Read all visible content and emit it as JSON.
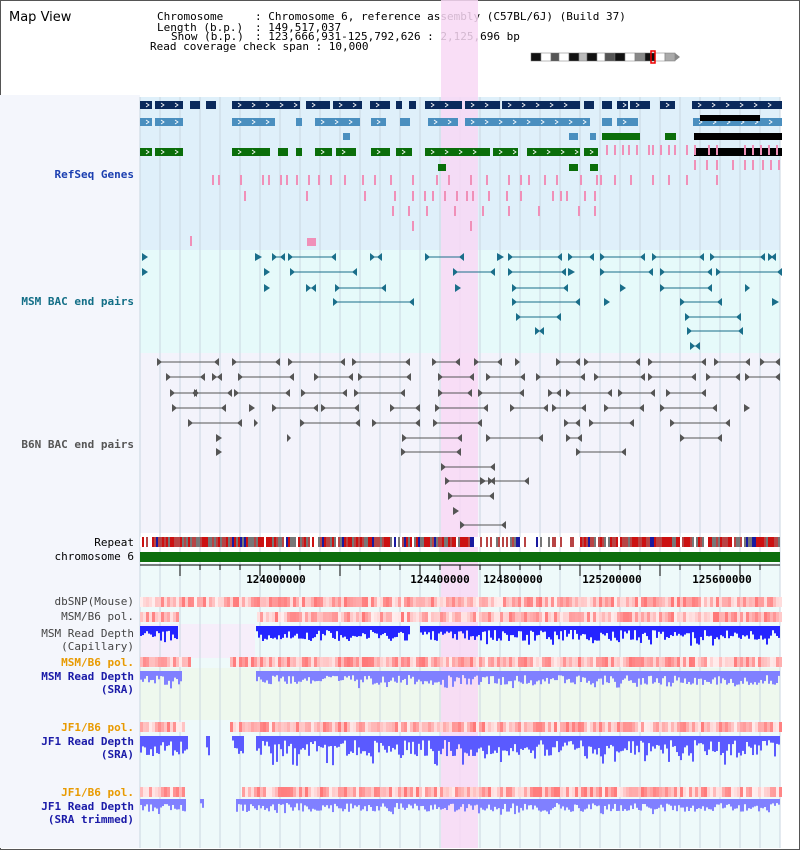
{
  "header": {
    "title": "Map View",
    "chromosome_key": "Chromosome",
    "chromosome_value": ": Chromosome 6, reference assembly (C57BL/6J) (Build 37)",
    "length_key": "Length (b.p.)",
    "length_value": ": 149,517,037",
    "show_key": "Show (b.p.)",
    "show_value": ": 123,666,931-125,792,626 : 2,125,696 bp",
    "read_coverage": "Read coverage check span : 10,000"
  },
  "tracks": {
    "refseq": "RefSeq Genes",
    "msm_bac": "MSM BAC end pairs",
    "b6n_bac": "B6N BAC end pairs",
    "repeat": "Repeat",
    "chromosome": "chromosome 6",
    "dbsnp": "dbSNP(Mouse)",
    "msm_b6_pol_1": "MSM/B6 pol.",
    "msm_depth_cap_1": "MSM Read Depth",
    "msm_depth_cap_2": "(Capillary)",
    "msm_b6_pol_2": "MSM/B6 pol.",
    "msm_depth_sra_1": "MSM Read Depth",
    "msm_depth_sra_2": "(SRA)",
    "jf1_b6_pol_1": "JF1/B6 pol.",
    "jf1_depth_sra_1": "JF1 Read Depth",
    "jf1_depth_sra_2": "(SRA)",
    "jf1_b6_pol_2": "JF1/B6 pol.",
    "jf1_depth_trim_1": "JF1 Read Depth",
    "jf1_depth_trim_2": "(SRA trimmed)"
  },
  "axis": {
    "ticks": [
      "124000000",
      "124400000",
      "124800000",
      "125200000",
      "125600000"
    ]
  },
  "colors": {
    "refseq_bg": "#dff0fa",
    "msm_bac_bg": "#e6fafa",
    "b6n_bac_bg": "#f3f3fb",
    "highlight": "#f8d8f4",
    "navy": "#0a2a5c",
    "steel": "#4a8fbf",
    "green": "#0a6e0a",
    "teal": "#1a6e8a",
    "gray": "#555555",
    "read_blue": "#2424ff",
    "read_light": "#8080ff"
  }
}
